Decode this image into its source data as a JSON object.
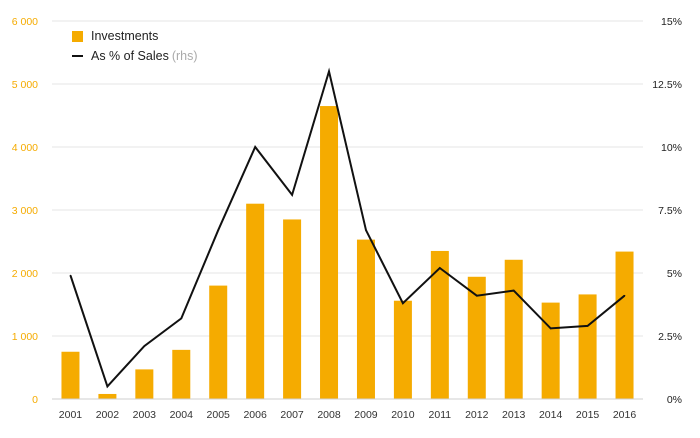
{
  "chart_data": {
    "type": "bar",
    "categories": [
      "2001",
      "2002",
      "2003",
      "2004",
      "2005",
      "2006",
      "2007",
      "2008",
      "2009",
      "2010",
      "2011",
      "2012",
      "2013",
      "2014",
      "2015",
      "2016"
    ],
    "series": [
      {
        "name": "Investments",
        "kind": "bar",
        "axis": "left",
        "color": "#f5ab00",
        "values": [
          750,
          80,
          470,
          780,
          1800,
          3100,
          2850,
          4650,
          2530,
          1560,
          2350,
          1940,
          2210,
          1530,
          1660,
          2340
        ]
      },
      {
        "name": "As % of Sales",
        "name_suffix": "(rhs)",
        "kind": "line",
        "axis": "right",
        "color": "#111111",
        "values": [
          4.9,
          0.5,
          2.1,
          3.2,
          6.7,
          10.0,
          8.1,
          13.0,
          6.7,
          3.8,
          5.2,
          4.1,
          4.3,
          2.8,
          2.9,
          4.1
        ]
      }
    ],
    "left_axis": {
      "ylim": [
        0,
        6000
      ],
      "ticks": [
        0,
        1000,
        2000,
        3000,
        4000,
        5000,
        6000
      ],
      "tick_labels": [
        "0",
        "1 000",
        "2 000",
        "3 000",
        "4 000",
        "5 000",
        "6 000"
      ],
      "label_color": "#f5ab00"
    },
    "right_axis": {
      "ylim": [
        0,
        15
      ],
      "ticks": [
        0,
        2.5,
        5,
        7.5,
        10,
        12.5,
        15
      ],
      "tick_labels": [
        "0%",
        "2.5%",
        "5%",
        "7.5%",
        "10%",
        "12.5%",
        "15%"
      ],
      "label_color": "#222222"
    },
    "grid": true,
    "legend_position": "top-left",
    "title": "",
    "xlabel": "",
    "ylabel": ""
  }
}
